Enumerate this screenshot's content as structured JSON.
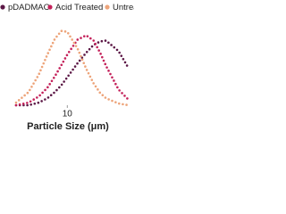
{
  "chart_data": {
    "type": "line",
    "x_label": "Particle Size (μm)",
    "log_x": true,
    "xlim": [
      3,
      33
    ],
    "xticks": [
      10
    ],
    "ylim": [
      0,
      10
    ],
    "x": [
      4,
      5,
      6,
      7,
      8,
      9,
      10,
      12,
      14,
      16,
      18,
      20,
      25,
      30
    ],
    "series": [
      {
        "name": "pDADMAC",
        "color": "#5c1846",
        "values": [
          0,
          0,
          0.3,
          0.8,
          1.5,
          2.3,
          3.2,
          4.8,
          6,
          6.9,
          7.3,
          7.4,
          6.2,
          4.2
        ]
      },
      {
        "name": "Acid Treated",
        "color": "#c4215a",
        "values": [
          0,
          0.3,
          1,
          2,
          3.3,
          4.6,
          5.8,
          7.5,
          8,
          7.4,
          6,
          4.5,
          1.8,
          0.6
        ]
      },
      {
        "name": "Untreated",
        "color": "#eda47a",
        "values": [
          0.3,
          1.5,
          3.5,
          5.8,
          7.6,
          8.5,
          8.4,
          6.5,
          4.2,
          2.5,
          1.4,
          0.8,
          0.2,
          0
        ]
      }
    ]
  }
}
